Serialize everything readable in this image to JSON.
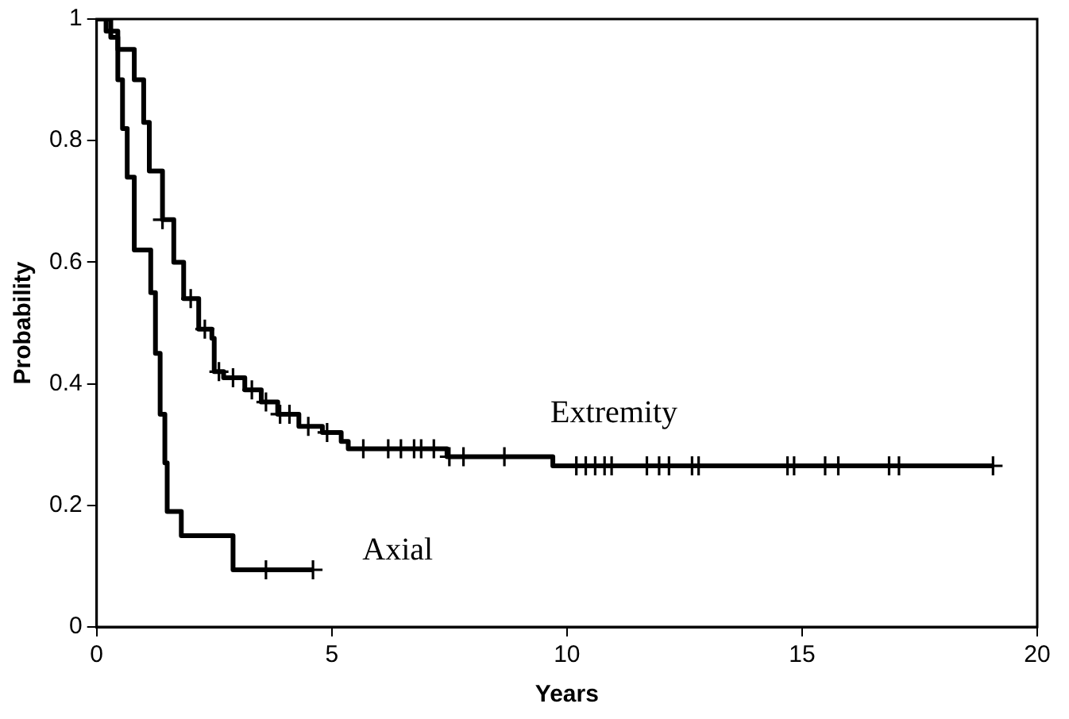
{
  "chart_data": {
    "type": "step",
    "xlabel": "Years",
    "ylabel": "Probability",
    "xlim": [
      0,
      20
    ],
    "xticks": [
      0,
      5,
      10,
      15,
      20
    ],
    "ylim": [
      0,
      1
    ],
    "yticks": [
      0,
      0.2,
      0.4,
      0.6,
      0.8,
      1
    ],
    "grid": false,
    "legend": false,
    "line_style": "solid",
    "marker": "none",
    "series": [
      {
        "color": "#000000",
        "x": [
          0,
          0.3,
          0.45,
          0.55,
          0.65,
          0.8,
          1.15,
          1.25,
          1.35,
          1.45,
          1.5,
          1.8,
          2.9,
          4.6
        ],
        "values": [
          1,
          0.97,
          0.9,
          0.82,
          0.74,
          0.62,
          0.55,
          0.45,
          0.35,
          0.27,
          0.19,
          0.15,
          0.094,
          0.094
        ]
      },
      {
        "color": "#000000",
        "x": [
          0,
          0.2,
          0.45,
          0.8,
          1.0,
          1.12,
          1.4,
          1.64,
          1.85,
          2.17,
          2.45,
          2.5,
          2.7,
          3.15,
          3.5,
          3.85,
          4.3,
          4.8,
          5.2,
          5.35,
          7.45,
          9.7,
          19.06
        ],
        "values": [
          1,
          0.98,
          0.95,
          0.9,
          0.83,
          0.75,
          0.67,
          0.6,
          0.54,
          0.49,
          0.475,
          0.42,
          0.41,
          0.39,
          0.37,
          0.35,
          0.33,
          0.32,
          0.305,
          0.293,
          0.28,
          0.265,
          0.265
        ]
      },
      {
        "type": "scatter",
        "marker": "cross",
        "color": "#000000",
        "x": [
          3.6,
          4.6
        ],
        "values": [
          0.094,
          0.094
        ]
      },
      {
        "type": "scatter",
        "marker": "cross",
        "color": "#000000",
        "x": [
          1.4,
          2.0,
          2.3,
          2.6,
          2.9,
          3.3,
          3.6,
          3.9,
          4.1,
          4.5,
          4.9,
          5.67,
          6.2,
          6.47,
          6.75,
          6.9,
          7.17,
          7.5,
          7.8,
          8.67,
          10.2,
          10.4,
          10.6,
          10.8,
          10.95,
          11.7,
          11.96,
          12.17,
          12.66,
          12.8,
          14.69,
          14.83,
          15.49,
          15.77,
          16.85,
          17.06,
          19.06
        ],
        "values": [
          0.67,
          0.54,
          0.49,
          0.42,
          0.41,
          0.39,
          0.37,
          0.35,
          0.35,
          0.33,
          0.32,
          0.293,
          0.293,
          0.293,
          0.293,
          0.293,
          0.293,
          0.28,
          0.28,
          0.28,
          0.265,
          0.265,
          0.265,
          0.265,
          0.265,
          0.265,
          0.265,
          0.265,
          0.265,
          0.265,
          0.265,
          0.265,
          0.265,
          0.265,
          0.265,
          0.265,
          0.265
        ]
      }
    ],
    "annotations": [
      "Extremity",
      "Axial"
    ]
  }
}
